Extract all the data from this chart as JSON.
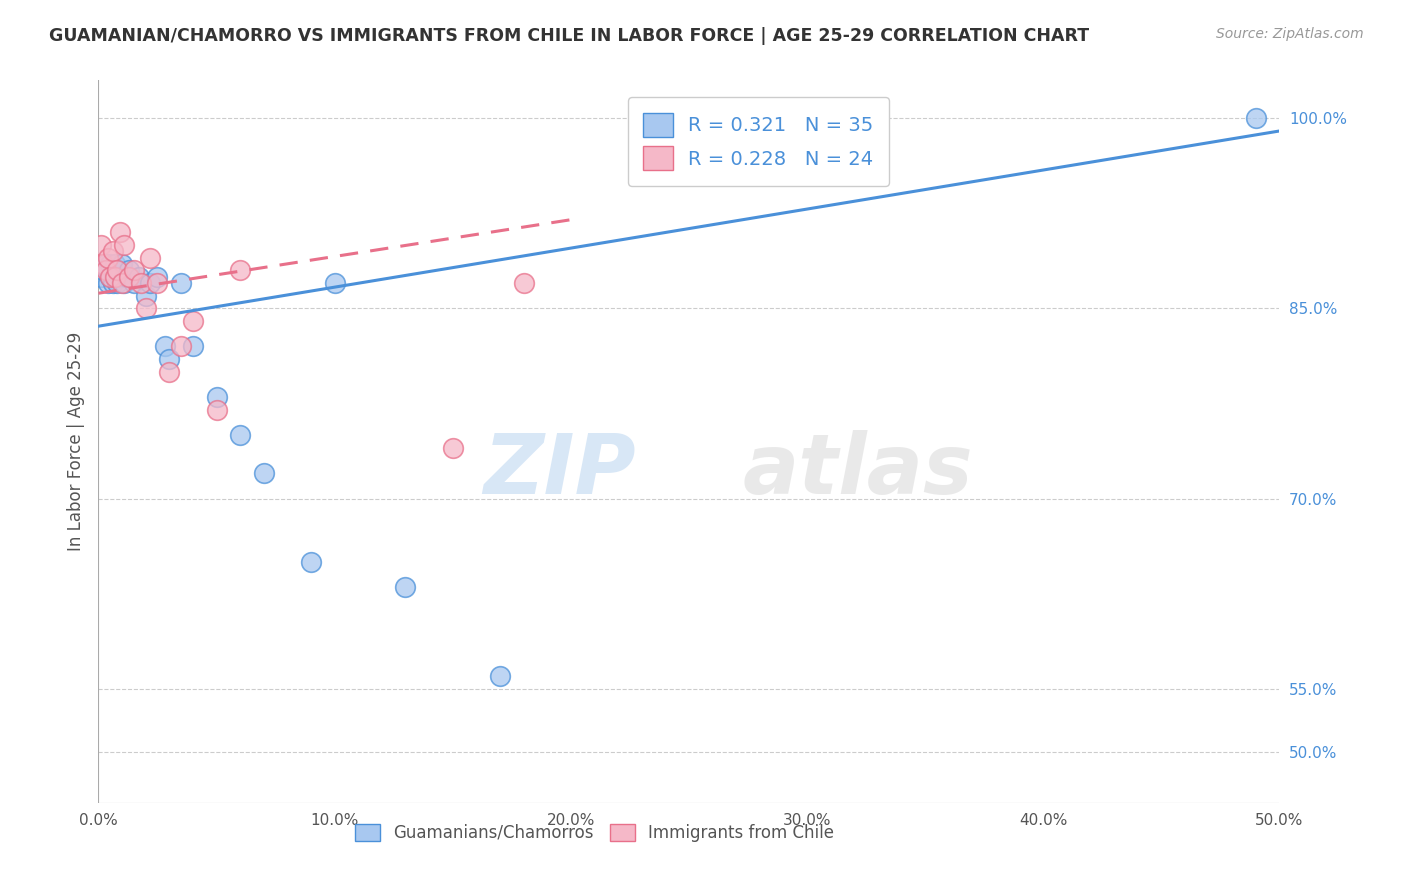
{
  "title": "GUAMANIAN/CHAMORRO VS IMMIGRANTS FROM CHILE IN LABOR FORCE | AGE 25-29 CORRELATION CHART",
  "source": "Source: ZipAtlas.com",
  "ylabel": "In Labor Force | Age 25-29",
  "xlim": [
    0.0,
    0.5
  ],
  "ylim": [
    0.46,
    1.03
  ],
  "xticks": [
    0.0,
    0.1,
    0.2,
    0.3,
    0.4,
    0.5
  ],
  "xtick_labels": [
    "0.0%",
    "10.0%",
    "20.0%",
    "30.0%",
    "40.0%",
    "50.0%"
  ],
  "ytick_vals": [
    0.5,
    0.55,
    0.7,
    0.85,
    1.0
  ],
  "ytick_labels_right": [
    "50.0%",
    "55.0%",
    "70.0%",
    "85.0%",
    "100.0%"
  ],
  "grid_color": "#cccccc",
  "R_blue": 0.321,
  "N_blue": 35,
  "R_pink": 0.228,
  "N_pink": 24,
  "blue_color": "#a8c8f0",
  "pink_color": "#f5b8c8",
  "line_blue": "#4a90d9",
  "line_pink": "#e8708a",
  "blue_scatter_x": [
    0.001,
    0.002,
    0.003,
    0.004,
    0.004,
    0.005,
    0.005,
    0.006,
    0.006,
    0.007,
    0.007,
    0.008,
    0.008,
    0.009,
    0.01,
    0.011,
    0.012,
    0.013,
    0.015,
    0.017,
    0.02,
    0.022,
    0.025,
    0.028,
    0.03,
    0.035,
    0.04,
    0.05,
    0.06,
    0.07,
    0.09,
    0.1,
    0.13,
    0.17,
    0.49
  ],
  "blue_scatter_y": [
    0.875,
    0.88,
    0.885,
    0.87,
    0.88,
    0.875,
    0.885,
    0.87,
    0.88,
    0.875,
    0.885,
    0.87,
    0.88,
    0.875,
    0.885,
    0.87,
    0.875,
    0.88,
    0.87,
    0.875,
    0.86,
    0.87,
    0.875,
    0.82,
    0.81,
    0.87,
    0.82,
    0.78,
    0.75,
    0.72,
    0.65,
    0.87,
    0.63,
    0.56,
    1.0
  ],
  "pink_scatter_x": [
    0.001,
    0.002,
    0.003,
    0.004,
    0.005,
    0.006,
    0.007,
    0.008,
    0.009,
    0.01,
    0.011,
    0.013,
    0.015,
    0.018,
    0.02,
    0.022,
    0.025,
    0.03,
    0.035,
    0.04,
    0.05,
    0.06,
    0.15,
    0.18
  ],
  "pink_scatter_y": [
    0.9,
    0.885,
    0.88,
    0.89,
    0.875,
    0.895,
    0.875,
    0.88,
    0.91,
    0.87,
    0.9,
    0.875,
    0.88,
    0.87,
    0.85,
    0.89,
    0.87,
    0.8,
    0.82,
    0.84,
    0.77,
    0.88,
    0.74,
    0.87
  ],
  "watermark_zip": "ZIP",
  "watermark_atlas": "atlas",
  "trendline_blue_x0": 0.0,
  "trendline_blue_x1": 0.5,
  "trendline_blue_y0": 0.836,
  "trendline_blue_y1": 0.99,
  "trendline_pink_x0": 0.0,
  "trendline_pink_x1": 0.2,
  "trendline_pink_y0": 0.862,
  "trendline_pink_y1": 0.92
}
